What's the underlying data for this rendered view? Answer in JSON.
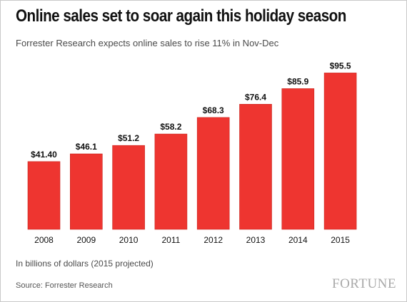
{
  "chart_data": {
    "type": "bar",
    "title": "Online sales set to soar again this holiday season",
    "subtitle": "Forrester Research expects online sales to rise 11% in Nov-Dec",
    "categories": [
      "2008",
      "2009",
      "2010",
      "2011",
      "2012",
      "2013",
      "2014",
      "2015"
    ],
    "values": [
      41.4,
      46.1,
      51.2,
      58.2,
      68.3,
      76.4,
      85.9,
      95.5
    ],
    "value_labels": [
      "$41.40",
      "$46.1",
      "$51.2",
      "$58.2",
      "$68.3",
      "$76.4",
      "$85.9",
      "$95.5"
    ],
    "colors": {
      "bar": "#ee3530"
    },
    "ylim": [
      0,
      100
    ],
    "grid": false,
    "xlabel": "",
    "ylabel": ""
  },
  "footer": {
    "note": "In billions of dollars (2015 projected)",
    "source": "Source: Forrester Research",
    "logo": "FORTUNE"
  }
}
